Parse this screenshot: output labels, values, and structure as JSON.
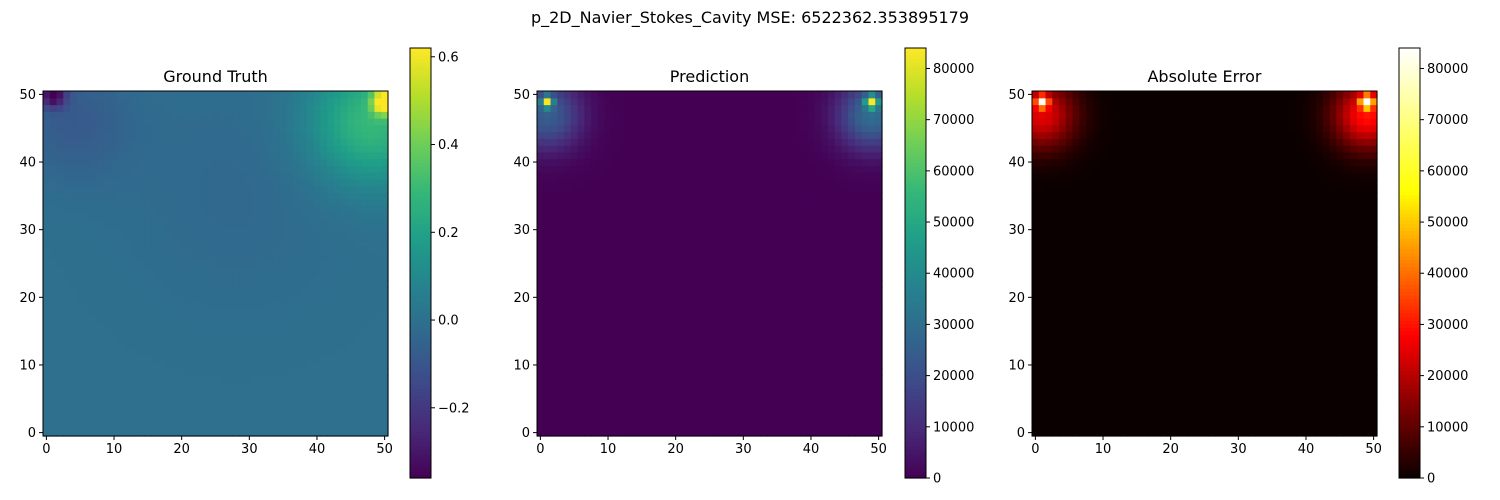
{
  "figure": {
    "suptitle": "p_2D_Navier_Stokes_Cavity MSE: 6522362.353895179"
  },
  "chart_data": [
    {
      "type": "heatmap",
      "title": "Ground Truth",
      "colormap": "viridis",
      "grid_size": [
        51,
        51
      ],
      "extent": [
        -0.5,
        50.5,
        -0.5,
        50.5
      ],
      "xticks": [
        0,
        10,
        20,
        30,
        40,
        50
      ],
      "yticks": [
        0,
        10,
        20,
        30,
        40,
        50
      ],
      "xtick_labels": [
        "0",
        "10",
        "20",
        "30",
        "40",
        "50"
      ],
      "ytick_labels": [
        "0",
        "10",
        "20",
        "30",
        "40",
        "50"
      ],
      "clim": [
        -0.36,
        0.62
      ],
      "colorbar_ticks": [
        -0.2,
        0.0,
        0.2,
        0.4,
        0.6
      ],
      "colorbar_tick_labels": [
        "−0.2",
        "0.0",
        "0.2",
        "0.4",
        "0.6"
      ],
      "base_value": 0.0,
      "hotspots": [
        {
          "x": 50,
          "y": 49,
          "value": 0.62,
          "radius": 1.2
        },
        {
          "x": 48,
          "y": 46,
          "value": 0.3,
          "radius": 6.5
        },
        {
          "x": 1,
          "y": 50,
          "value": -0.34,
          "radius": 1.3
        },
        {
          "x": 4,
          "y": 46,
          "value": -0.08,
          "radius": 6
        },
        {
          "x": 28,
          "y": 36,
          "value": -0.03,
          "radius": 12
        }
      ],
      "grid": false
    },
    {
      "type": "heatmap",
      "title": "Prediction",
      "colormap": "viridis",
      "grid_size": [
        51,
        51
      ],
      "extent": [
        -0.5,
        50.5,
        -0.5,
        50.5
      ],
      "xticks": [
        0,
        10,
        20,
        30,
        40,
        50
      ],
      "yticks": [
        0,
        10,
        20,
        30,
        40,
        50
      ],
      "xtick_labels": [
        "0",
        "10",
        "20",
        "30",
        "40",
        "50"
      ],
      "ytick_labels": [
        "0",
        "10",
        "20",
        "30",
        "40",
        "50"
      ],
      "clim": [
        0,
        84000
      ],
      "colorbar_ticks": [
        0,
        10000,
        20000,
        30000,
        40000,
        50000,
        60000,
        70000,
        80000
      ],
      "colorbar_tick_labels": [
        "0",
        "10000",
        "20000",
        "30000",
        "40000",
        "50000",
        "60000",
        "70000",
        "80000"
      ],
      "base_value": 0,
      "hotspots": [
        {
          "x": 49,
          "y": 49,
          "value": 84000,
          "radius": 0.6
        },
        {
          "x": 49,
          "y": 47,
          "value": 30000,
          "radius": 3.5
        },
        {
          "x": 1,
          "y": 49,
          "value": 62000,
          "radius": 0.6
        },
        {
          "x": 1,
          "y": 47,
          "value": 25000,
          "radius": 3.5
        }
      ],
      "grid": false
    },
    {
      "type": "heatmap",
      "title": "Absolute Error",
      "colormap": "hot",
      "grid_size": [
        51,
        51
      ],
      "extent": [
        -0.5,
        50.5,
        -0.5,
        50.5
      ],
      "xticks": [
        0,
        10,
        20,
        30,
        40,
        50
      ],
      "yticks": [
        0,
        10,
        20,
        30,
        40,
        50
      ],
      "xtick_labels": [
        "0",
        "10",
        "20",
        "30",
        "40",
        "50"
      ],
      "ytick_labels": [
        "0",
        "10",
        "20",
        "30",
        "40",
        "50"
      ],
      "clim": [
        0,
        84000
      ],
      "colorbar_ticks": [
        0,
        10000,
        20000,
        30000,
        40000,
        50000,
        60000,
        70000,
        80000
      ],
      "colorbar_tick_labels": [
        "0",
        "10000",
        "20000",
        "30000",
        "40000",
        "50000",
        "60000",
        "70000",
        "80000"
      ],
      "base_value": 0,
      "hotspots": [
        {
          "x": 49,
          "y": 49,
          "value": 84000,
          "radius": 0.6
        },
        {
          "x": 49,
          "y": 47,
          "value": 30000,
          "radius": 3.5
        },
        {
          "x": 1,
          "y": 49,
          "value": 62000,
          "radius": 0.6
        },
        {
          "x": 1,
          "y": 47,
          "value": 25000,
          "radius": 3.5
        }
      ],
      "grid": false
    }
  ]
}
